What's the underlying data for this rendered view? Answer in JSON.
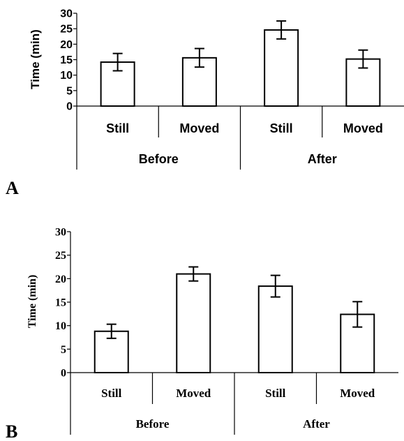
{
  "chart_data": [
    {
      "panel": "A",
      "type": "bar",
      "ylabel": "Time (min)",
      "ylim": [
        0,
        30
      ],
      "yticks": [
        "0",
        "5",
        "10",
        "15",
        "20",
        "25",
        "30"
      ],
      "categories": [
        "Still",
        "Moved",
        "Still",
        "Moved"
      ],
      "groups": [
        "Before",
        "After"
      ],
      "values": [
        14.2,
        15.6,
        24.6,
        15.2
      ],
      "errors": [
        2.8,
        3.0,
        2.9,
        2.9
      ]
    },
    {
      "panel": "B",
      "type": "bar",
      "ylabel": "Time (min)",
      "ylim": [
        0,
        30
      ],
      "yticks": [
        "0",
        "5",
        "10",
        "15",
        "20",
        "25",
        "30"
      ],
      "categories": [
        "Still",
        "Moved",
        "Still",
        "Moved"
      ],
      "groups": [
        "Before",
        "After"
      ],
      "values": [
        8.8,
        21.0,
        18.4,
        12.4
      ],
      "errors": [
        1.5,
        1.5,
        2.3,
        2.7
      ]
    }
  ]
}
